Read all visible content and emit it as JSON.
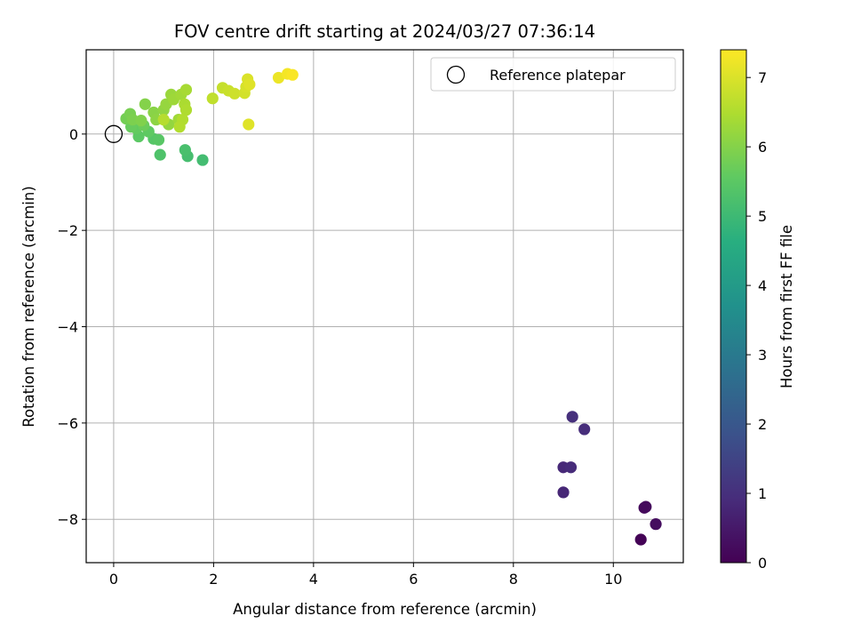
{
  "chart_data": {
    "type": "scatter",
    "title": "FOV centre drift starting at 2024/03/27 07:36:14",
    "xlabel": "Angular distance from reference (arcmin)",
    "ylabel": "Rotation from reference (arcmin)",
    "xlim": [
      -0.55,
      11.4
    ],
    "ylim": [
      -8.9,
      1.75
    ],
    "xticks": [
      "0",
      "2",
      "4",
      "6",
      "8",
      "10"
    ],
    "yticks": [
      "0",
      "−2",
      "−4",
      "−6",
      "−8"
    ],
    "grid": true,
    "legend": {
      "placement": "top-right",
      "entries": [
        "Reference platepar"
      ]
    },
    "reference_point": {
      "x": 0,
      "y": 0
    },
    "colorbar": {
      "label": "Hours from first FF file",
      "range": [
        0,
        7.4
      ],
      "ticks": [
        "0",
        "1",
        "2",
        "3",
        "4",
        "5",
        "6",
        "7"
      ],
      "colormap": "viridis"
    },
    "points": [
      {
        "x": 10.55,
        "y": -8.42,
        "t": 0.05
      },
      {
        "x": 10.62,
        "y": -7.76,
        "t": 0.15
      },
      {
        "x": 10.65,
        "y": -7.74,
        "t": 0.2
      },
      {
        "x": 10.85,
        "y": -8.1,
        "t": 0.25
      },
      {
        "x": 9.0,
        "y": -7.44,
        "t": 0.8
      },
      {
        "x": 9.0,
        "y": -6.92,
        "t": 0.85
      },
      {
        "x": 9.15,
        "y": -6.92,
        "t": 0.9
      },
      {
        "x": 9.42,
        "y": -6.13,
        "t": 0.95
      },
      {
        "x": 9.18,
        "y": -5.87,
        "t": 1.0
      },
      {
        "x": 1.78,
        "y": -0.54,
        "t": 5.1
      },
      {
        "x": 1.48,
        "y": -0.46,
        "t": 5.15
      },
      {
        "x": 1.43,
        "y": -0.33,
        "t": 5.2
      },
      {
        "x": 0.93,
        "y": -0.43,
        "t": 5.3
      },
      {
        "x": 0.8,
        "y": -0.1,
        "t": 5.4
      },
      {
        "x": 0.9,
        "y": -0.12,
        "t": 5.45
      },
      {
        "x": 0.5,
        "y": -0.05,
        "t": 5.5
      },
      {
        "x": 0.7,
        "y": 0.05,
        "t": 5.55
      },
      {
        "x": 0.45,
        "y": 0.12,
        "t": 5.6
      },
      {
        "x": 0.35,
        "y": 0.15,
        "t": 5.65
      },
      {
        "x": 0.6,
        "y": 0.18,
        "t": 5.7
      },
      {
        "x": 0.25,
        "y": 0.32,
        "t": 5.8
      },
      {
        "x": 0.33,
        "y": 0.42,
        "t": 5.85
      },
      {
        "x": 0.38,
        "y": 0.3,
        "t": 5.9
      },
      {
        "x": 0.55,
        "y": 0.28,
        "t": 5.95
      },
      {
        "x": 0.63,
        "y": 0.62,
        "t": 6.0
      },
      {
        "x": 0.8,
        "y": 0.45,
        "t": 6.05
      },
      {
        "x": 0.85,
        "y": 0.3,
        "t": 6.1
      },
      {
        "x": 1.0,
        "y": 0.5,
        "t": 6.15
      },
      {
        "x": 1.1,
        "y": 0.2,
        "t": 6.18
      },
      {
        "x": 1.05,
        "y": 0.62,
        "t": 6.2
      },
      {
        "x": 1.15,
        "y": 0.82,
        "t": 6.25
      },
      {
        "x": 1.2,
        "y": 0.72,
        "t": 6.3
      },
      {
        "x": 1.3,
        "y": 0.3,
        "t": 6.32
      },
      {
        "x": 1.35,
        "y": 0.82,
        "t": 6.35
      },
      {
        "x": 1.45,
        "y": 0.92,
        "t": 6.4
      },
      {
        "x": 1.42,
        "y": 0.62,
        "t": 6.45
      },
      {
        "x": 1.45,
        "y": 0.5,
        "t": 6.5
      },
      {
        "x": 1.38,
        "y": 0.3,
        "t": 6.52
      },
      {
        "x": 1.32,
        "y": 0.15,
        "t": 6.55
      },
      {
        "x": 1.0,
        "y": 0.3,
        "t": 6.58
      },
      {
        "x": 1.98,
        "y": 0.74,
        "t": 6.7
      },
      {
        "x": 2.18,
        "y": 0.96,
        "t": 6.75
      },
      {
        "x": 2.3,
        "y": 0.9,
        "t": 6.8
      },
      {
        "x": 2.42,
        "y": 0.84,
        "t": 6.85
      },
      {
        "x": 2.62,
        "y": 0.85,
        "t": 6.9
      },
      {
        "x": 2.65,
        "y": 0.98,
        "t": 6.95
      },
      {
        "x": 2.68,
        "y": 1.14,
        "t": 7.0
      },
      {
        "x": 2.72,
        "y": 1.03,
        "t": 7.05
      },
      {
        "x": 2.7,
        "y": 0.2,
        "t": 7.05
      },
      {
        "x": 3.3,
        "y": 1.17,
        "t": 7.2
      },
      {
        "x": 3.48,
        "y": 1.25,
        "t": 7.3
      },
      {
        "x": 3.58,
        "y": 1.23,
        "t": 7.35
      }
    ]
  }
}
